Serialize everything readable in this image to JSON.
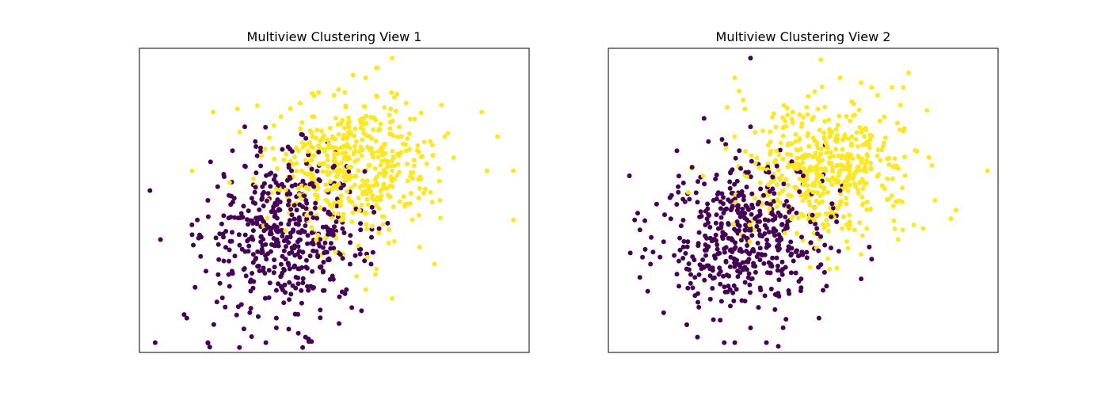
{
  "chart_data": [
    {
      "type": "scatter",
      "title": "Multiview Clustering View 1",
      "xlabel": "",
      "ylabel": "",
      "xlim": [
        -3.2,
        4.2
      ],
      "ylim": [
        -3.0,
        3.2
      ],
      "axis_ticks": false,
      "grid": false,
      "legend": "none",
      "n_points": 1000,
      "series": [
        {
          "cluster": 0,
          "color": "#440154",
          "center": [
            -0.4,
            -0.6
          ],
          "spread": [
            0.75,
            0.8
          ],
          "points": [
            [
              -3.0,
              0.3
            ],
            [
              -2.8,
              -0.7
            ],
            [
              -2.9,
              -2.8
            ],
            [
              -2.3,
              -2.3
            ],
            [
              -1.9,
              -2.8
            ],
            [
              -1.3,
              -2.9
            ],
            [
              -0.8,
              -2.8
            ],
            [
              -0.1,
              -2.9
            ],
            [
              -0.6,
              -2.5
            ],
            [
              -0.6,
              -2.3
            ],
            [
              -1.2,
              1.6
            ],
            [
              -1.0,
              1.3
            ],
            [
              -1.2,
              0.8
            ],
            [
              -1.5,
              0.2
            ],
            [
              -1.9,
              0.1
            ],
            [
              -2.1,
              -0.3
            ],
            [
              -2.2,
              -0.6
            ],
            [
              -1.7,
              -0.8
            ],
            [
              -0.9,
              1.1
            ],
            [
              -0.3,
              1.1
            ],
            [
              0.5,
              0.8
            ],
            [
              1.0,
              -0.5
            ],
            [
              0.8,
              -1.2
            ],
            [
              1.2,
              -1.2
            ],
            [
              1.0,
              -0.9
            ]
          ]
        },
        {
          "cluster": 1,
          "color": "#fde725",
          "center": [
            0.9,
            0.8
          ],
          "spread": [
            0.75,
            0.75
          ],
          "points": [
            [
              1.6,
              3.0
            ],
            [
              1.3,
              2.8
            ],
            [
              1.1,
              2.6
            ],
            [
              0.7,
              2.3
            ],
            [
              0.2,
              2.3
            ],
            [
              -1.8,
              1.9
            ],
            [
              2.6,
              1.4
            ],
            [
              3.3,
              1.9
            ],
            [
              3.4,
              0.7
            ],
            [
              3.6,
              1.4
            ],
            [
              3.9,
              0.7
            ],
            [
              3.9,
              -0.3
            ],
            [
              2.4,
              -1.2
            ],
            [
              1.6,
              -1.9
            ],
            [
              1.3,
              -1.3
            ],
            [
              0.0,
              1.1
            ],
            [
              0.7,
              1.4
            ],
            [
              1.4,
              0.9
            ],
            [
              0.5,
              0.4
            ],
            [
              -2.2,
              0.7
            ]
          ]
        }
      ]
    },
    {
      "type": "scatter",
      "title": "Multiview Clustering View 2",
      "xlabel": "",
      "ylabel": "",
      "xlim": [
        -3.2,
        4.2
      ],
      "ylim": [
        -3.0,
        3.2
      ],
      "axis_ticks": false,
      "grid": false,
      "legend": "none",
      "n_points": 1000,
      "series": [
        {
          "cluster": 0,
          "color": "#440154",
          "center": [
            -0.6,
            -0.6
          ],
          "spread": [
            0.75,
            0.75
          ],
          "points": [
            [
              -0.5,
              3.0
            ],
            [
              -2.8,
              0.6
            ],
            [
              -2.7,
              -0.3
            ],
            [
              -2.6,
              -0.5
            ],
            [
              -2.5,
              -0.9
            ],
            [
              -2.4,
              -1.2
            ],
            [
              -2.0,
              0.2
            ],
            [
              -1.5,
              -1.8
            ],
            [
              -1.0,
              -2.8
            ],
            [
              -0.8,
              -2.8
            ],
            [
              -0.5,
              -2.5
            ],
            [
              -0.2,
              -2.8
            ],
            [
              0.8,
              -2.3
            ],
            [
              1.6,
              -1.5
            ],
            [
              1.8,
              -1.1
            ],
            [
              -1.3,
              1.3
            ],
            [
              -0.5,
              1.6
            ],
            [
              0.0,
              0.8
            ],
            [
              0.5,
              0.6
            ],
            [
              1.2,
              0.3
            ]
          ]
        },
        {
          "cluster": 1,
          "color": "#fde725",
          "center": [
            0.9,
            0.7
          ],
          "spread": [
            0.75,
            0.7
          ],
          "points": [
            [
              -0.8,
              2.6
            ],
            [
              1.2,
              2.6
            ],
            [
              1.8,
              2.4
            ],
            [
              2.5,
              2.7
            ],
            [
              2.4,
              2.4
            ],
            [
              1.6,
              2.5
            ],
            [
              4.0,
              0.7
            ],
            [
              3.0,
              0.1
            ],
            [
              3.4,
              -0.1
            ],
            [
              2.6,
              -0.4
            ],
            [
              2.3,
              -0.7
            ],
            [
              1.6,
              -1.0
            ],
            [
              1.0,
              -1.3
            ],
            [
              -0.8,
              1.4
            ],
            [
              -1.4,
              0.6
            ],
            [
              0.3,
              1.9
            ],
            [
              1.0,
              1.4
            ],
            [
              1.6,
              0.9
            ],
            [
              0.6,
              0.3
            ],
            [
              2.0,
              0.4
            ]
          ]
        }
      ]
    }
  ]
}
